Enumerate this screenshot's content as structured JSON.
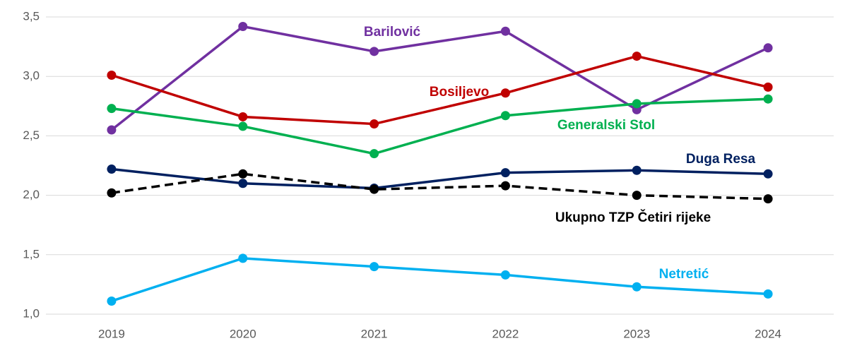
{
  "chart_data": {
    "type": "line",
    "categories": [
      "2019",
      "2020",
      "2021",
      "2022",
      "2023",
      "2024"
    ],
    "series": [
      {
        "name": "Barilović",
        "color": "#7030a0",
        "values": [
          2.55,
          3.42,
          3.21,
          3.38,
          2.72,
          3.24
        ]
      },
      {
        "name": "Bosiljevo",
        "color": "#c00000",
        "values": [
          3.01,
          2.66,
          2.6,
          2.86,
          3.17,
          2.91
        ]
      },
      {
        "name": "Generalski Stol",
        "color": "#00b050",
        "values": [
          2.73,
          2.58,
          2.35,
          2.67,
          2.77,
          2.81
        ]
      },
      {
        "name": "Duga Resa",
        "color": "#002060",
        "values": [
          2.22,
          2.1,
          2.06,
          2.19,
          2.21,
          2.18
        ]
      },
      {
        "name": "Ukupno TZP Četiri rijeke",
        "color": "#000000",
        "dash": true,
        "values": [
          2.02,
          2.18,
          2.05,
          2.08,
          2.0,
          1.97
        ]
      },
      {
        "name": "Netretić",
        "color": "#00b0f0",
        "values": [
          1.11,
          1.47,
          1.4,
          1.33,
          1.23,
          1.17
        ]
      }
    ],
    "ylim": [
      1.0,
      3.5
    ],
    "yticks": [
      {
        "value": 1.0,
        "label": "1,0"
      },
      {
        "value": 1.5,
        "label": "1,5"
      },
      {
        "value": 2.0,
        "label": "2,0"
      },
      {
        "value": 2.5,
        "label": "2,5"
      },
      {
        "value": 3.0,
        "label": "3,0"
      },
      {
        "value": 3.5,
        "label": "3,5"
      }
    ],
    "grid": true
  }
}
